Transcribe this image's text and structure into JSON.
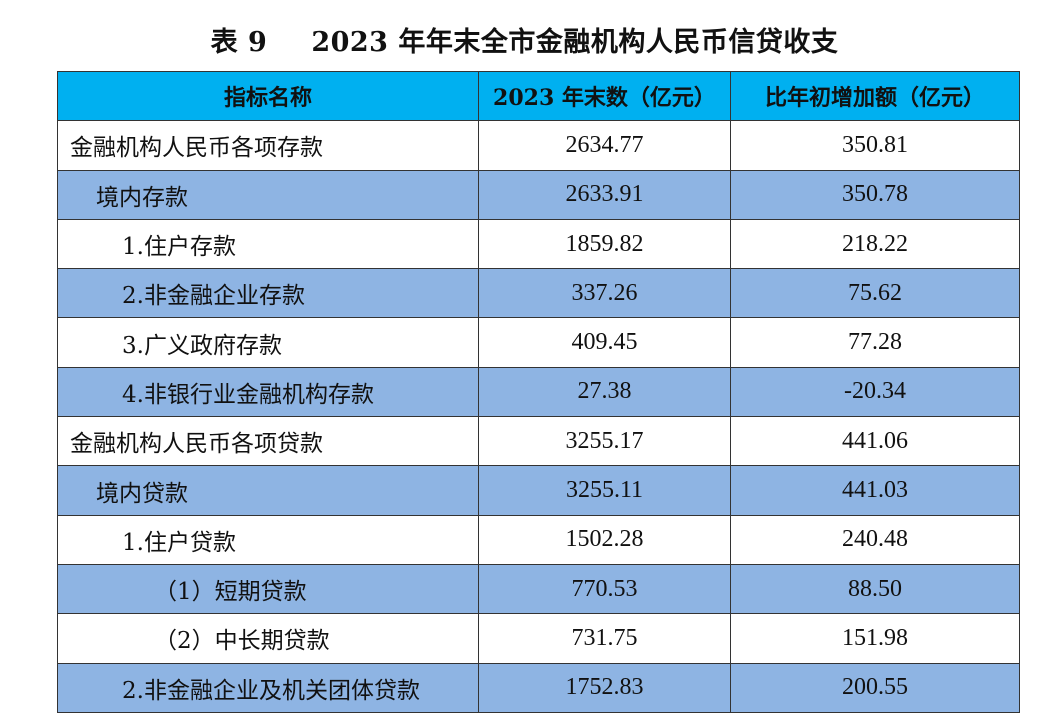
{
  "title": {
    "label": "表 9",
    "text": "2023 年年末全市金融机构人民币信贷收支"
  },
  "header": {
    "col1": "指标名称",
    "col2": "2023 年末数（亿元）",
    "col3": "比年初增加额（亿元）"
  },
  "rows": [
    {
      "name": "金融机构人民币各项存款",
      "value": "2634.77",
      "increase": "350.81"
    },
    {
      "name": "境内存款",
      "value": "2633.91",
      "increase": "350.78"
    },
    {
      "name": "1.住户存款",
      "value": "1859.82",
      "increase": "218.22"
    },
    {
      "name": "2.非金融企业存款",
      "value": "337.26",
      "increase": "75.62"
    },
    {
      "name": "3.广义政府存款",
      "value": "409.45",
      "increase": "77.28"
    },
    {
      "name": "4.非银行业金融机构存款",
      "value": "27.38",
      "increase": "-20.34"
    },
    {
      "name": "金融机构人民币各项贷款",
      "value": "3255.17",
      "increase": "441.06"
    },
    {
      "name": "境内贷款",
      "value": "3255.11",
      "increase": "441.03"
    },
    {
      "name": "1.住户贷款",
      "value": "1502.28",
      "increase": "240.48"
    },
    {
      "name": "（1）短期贷款",
      "value": "770.53",
      "increase": "88.50"
    },
    {
      "name": "（2）中长期贷款",
      "value": "731.75",
      "increase": "151.98"
    },
    {
      "name": "2.非金融企业及机关团体贷款",
      "value": "1752.83",
      "increase": "200.55"
    }
  ],
  "colors": {
    "header_bg": "#00b0f0",
    "shaded_row_bg": "#8eb4e3"
  }
}
